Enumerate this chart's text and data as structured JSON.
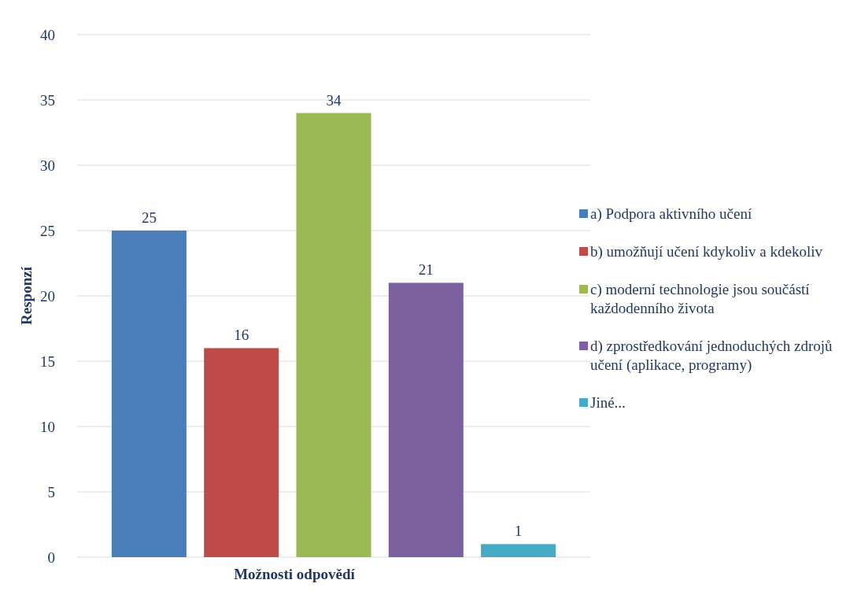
{
  "chart_data": {
    "type": "bar",
    "xlabel": "Možnosti odpovědí",
    "ylabel": "Responzí",
    "categories": [
      null
    ],
    "series": [
      {
        "name": "a) Podpora aktivního učení",
        "color": "#4a7ebb",
        "values": [
          25
        ]
      },
      {
        "name": "b) umožňují učení kdykoliv a kdekoliv",
        "color": "#be4b48",
        "values": [
          16
        ]
      },
      {
        "name": "c) moderní technologie jsou součástí každodenního života",
        "color": "#98b954",
        "values": [
          34
        ]
      },
      {
        "name": "d) zprostředkování jednoduchých zdrojů učení (aplikace, programy)",
        "color": "#7d60a0",
        "values": [
          21
        ]
      },
      {
        "name": "Jiné...",
        "color": "#46aac5",
        "values": [
          1
        ]
      }
    ],
    "ylim": [
      0,
      40
    ],
    "yticks": [
      0,
      5,
      10,
      15,
      20,
      25,
      30,
      35,
      40
    ],
    "grid": "y",
    "legend": "right",
    "data_labels": true,
    "tick_labels": "y"
  }
}
